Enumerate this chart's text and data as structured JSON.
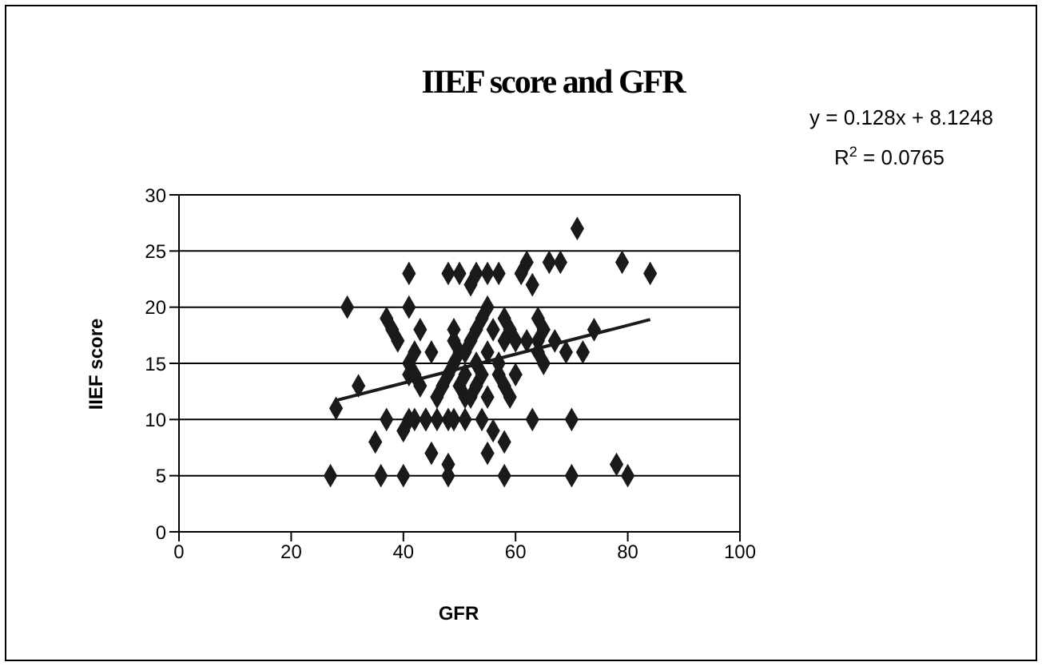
{
  "chart_data": {
    "type": "scatter",
    "title": "IIEF score and GFR",
    "xlabel": "GFR",
    "ylabel": "IIEF score",
    "annotations": [
      "y = 0.128x + 8.1248",
      "R$^{2}$ = 0.0765"
    ],
    "xlim": [
      0,
      100
    ],
    "xticks": [
      0,
      20,
      40,
      60,
      80,
      100
    ],
    "ylim": [
      0,
      30
    ],
    "yticks": [
      0,
      5,
      10,
      15,
      20,
      25,
      30
    ],
    "grid": "y",
    "marker": "diamond",
    "legend": false,
    "series": [
      {
        "color": "#1a1a1a",
        "x": [
          27,
          28,
          30,
          32,
          35,
          36,
          37,
          37,
          38,
          39,
          40,
          40,
          41,
          41,
          41,
          41,
          41,
          42,
          42,
          42,
          43,
          43,
          44,
          44,
          45,
          45,
          46,
          46,
          47,
          48,
          48,
          48,
          48,
          48,
          49,
          49,
          49,
          49,
          50,
          50,
          50,
          51,
          51,
          51,
          51,
          52,
          52,
          52,
          53,
          53,
          53,
          53,
          54,
          54,
          54,
          55,
          55,
          55,
          55,
          55,
          56,
          56,
          57,
          57,
          57,
          58,
          58,
          58,
          58,
          58,
          59,
          59,
          60,
          60,
          61,
          62,
          62,
          63,
          63,
          64,
          64,
          64,
          65,
          65,
          66,
          67,
          68,
          69,
          70,
          70,
          71,
          72,
          74,
          78,
          79,
          80,
          84
        ],
        "values": [
          5,
          11,
          20,
          13,
          8,
          5,
          19,
          10,
          18,
          17,
          5,
          9,
          23,
          20,
          15,
          14,
          10,
          16,
          14,
          10,
          18,
          13,
          10,
          10,
          16,
          7,
          10,
          12,
          13,
          10,
          6,
          5,
          23,
          14,
          17,
          15,
          10,
          18,
          23,
          16,
          13,
          10,
          16,
          12,
          14,
          22,
          17,
          12,
          23,
          18,
          15,
          13,
          19,
          10,
          14,
          23,
          7,
          20,
          16,
          12,
          9,
          18,
          23,
          15,
          14,
          8,
          5,
          19,
          17,
          13,
          18,
          12,
          17,
          14,
          23,
          24,
          17,
          10,
          22,
          17,
          16,
          19,
          15,
          18,
          24,
          17,
          24,
          16,
          10,
          5,
          27,
          16,
          18,
          6,
          24,
          5,
          23
        ]
      },
      {
        "type": "line",
        "color": "#1a1a1a",
        "marker": "none",
        "x": [
          28,
          84
        ],
        "values": [
          11.7,
          18.9
        ]
      }
    ]
  }
}
